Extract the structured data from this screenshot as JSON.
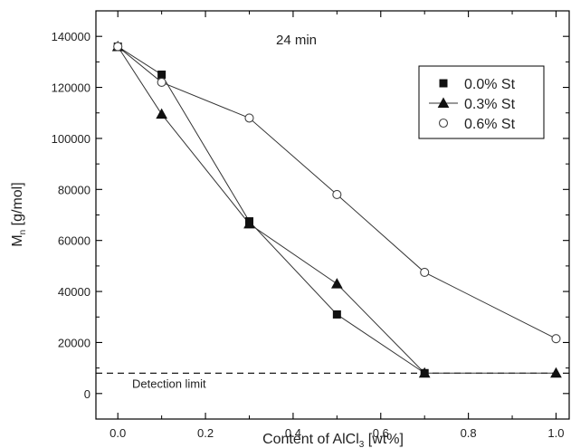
{
  "chart_data": {
    "type": "line",
    "annotation": "24 min",
    "xlabel": "Content of AlCl",
    "xlabel_sub": "3",
    "xlabel_suffix": " [wt%]",
    "ylabel": "M",
    "ylabel_sub": "n",
    "ylabel_suffix": " [g/mol]",
    "xlim": [
      -0.05,
      1.03
    ],
    "ylim": [
      -10000,
      150000
    ],
    "xticks": [
      0.0,
      0.2,
      0.4,
      0.6,
      0.8,
      1.0
    ],
    "xtick_labels": [
      "0.0",
      "0.2",
      "0.4",
      "0.6",
      "0.8",
      "1.0"
    ],
    "yticks": [
      0,
      20000,
      40000,
      60000,
      80000,
      100000,
      120000,
      140000
    ],
    "ytick_labels": [
      "0",
      "20000",
      "40000",
      "60000",
      "80000",
      "100000",
      "120000",
      "140000"
    ],
    "reference_line": {
      "y": 8000,
      "label": "Detection limit",
      "style": "dashed"
    },
    "legend_position": "top-right",
    "series": [
      {
        "name": "0.0% St",
        "marker": "square",
        "x": [
          0.0,
          0.1,
          0.3,
          0.5,
          0.7
        ],
        "y": [
          136000,
          125000,
          67500,
          31000,
          8000
        ]
      },
      {
        "name": "0.3% St",
        "marker": "triangle",
        "x": [
          0.0,
          0.1,
          0.3,
          0.5,
          0.7,
          1.0
        ],
        "y": [
          136000,
          109500,
          66500,
          43000,
          8000,
          8000
        ]
      },
      {
        "name": "0.6% St",
        "marker": "circle-open",
        "x": [
          0.0,
          0.1,
          0.3,
          0.5,
          0.7,
          1.0
        ],
        "y": [
          136000,
          122000,
          108000,
          78000,
          47500,
          21500
        ]
      }
    ]
  }
}
